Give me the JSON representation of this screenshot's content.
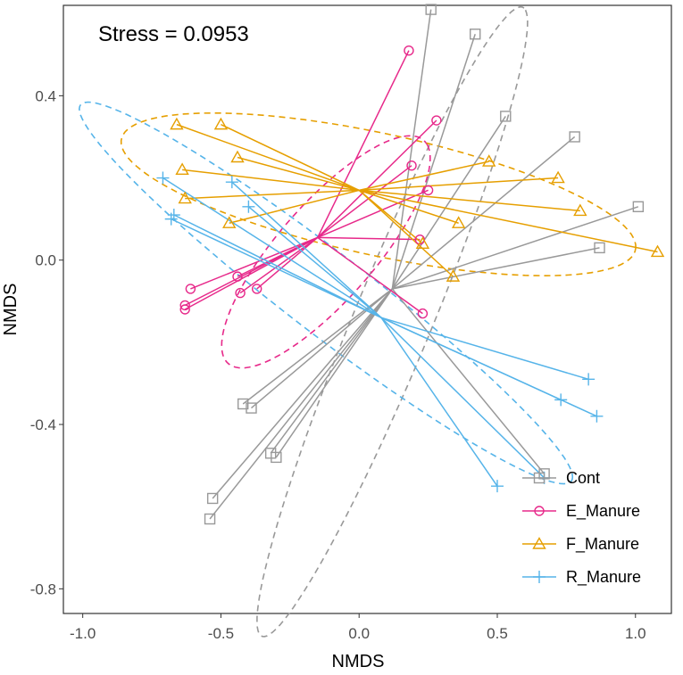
{
  "chart_data": {
    "type": "scatter",
    "title": "",
    "annotation": "Stress = 0.0953",
    "xlabel": "NMDS",
    "ylabel": "NMDS",
    "xlim": [
      -1.07,
      1.13
    ],
    "ylim": [
      -0.86,
      0.62
    ],
    "x_ticks": [
      -1.0,
      -0.5,
      0.0,
      0.5,
      1.0
    ],
    "x_tick_labels": [
      "-1.0",
      "-0.5",
      "0.0",
      "0.5",
      "1.0"
    ],
    "y_ticks": [
      -0.8,
      -0.4,
      0.0,
      0.4
    ],
    "y_tick_labels": [
      "-0.8",
      "-0.4",
      "0.0",
      "0.4"
    ],
    "grid": false,
    "legend_position": "bottom-right",
    "series": [
      {
        "name": "Cont",
        "color": "#999999",
        "marker": "square",
        "centroid": [
          0.12,
          -0.07
        ],
        "points": [
          [
            0.26,
            0.61
          ],
          [
            0.42,
            0.55
          ],
          [
            0.53,
            0.35
          ],
          [
            0.78,
            0.3
          ],
          [
            1.01,
            0.13
          ],
          [
            0.87,
            0.03
          ],
          [
            -0.42,
            -0.35
          ],
          [
            -0.39,
            -0.36
          ],
          [
            -0.32,
            -0.47
          ],
          [
            -0.3,
            -0.48
          ],
          [
            -0.53,
            -0.58
          ],
          [
            -0.54,
            -0.63
          ],
          [
            0.67,
            -0.52
          ]
        ],
        "ellipse": {
          "center": [
            0.12,
            -0.15
          ],
          "semi_axes": [
            0.9,
            0.13
          ],
          "angle_deg": 58
        }
      },
      {
        "name": "E_Manure",
        "color": "#E7298A",
        "marker": "circle",
        "centroid": [
          -0.15,
          0.055
        ],
        "points": [
          [
            0.18,
            0.51
          ],
          [
            0.28,
            0.34
          ],
          [
            0.19,
            0.23
          ],
          [
            0.25,
            0.17
          ],
          [
            0.22,
            0.05
          ],
          [
            0.23,
            -0.13
          ],
          [
            -0.61,
            -0.07
          ],
          [
            -0.63,
            -0.11
          ],
          [
            -0.63,
            -0.12
          ],
          [
            -0.44,
            -0.04
          ],
          [
            -0.43,
            -0.08
          ],
          [
            -0.37,
            -0.07
          ]
        ],
        "ellipse": {
          "center": [
            -0.12,
            0.02
          ],
          "semi_axes": [
            0.45,
            0.14
          ],
          "angle_deg": 35
        }
      },
      {
        "name": "F_Manure",
        "color": "#E69F00",
        "marker": "triangle",
        "centroid": [
          0.0,
          0.17
        ],
        "points": [
          [
            -0.66,
            0.33
          ],
          [
            -0.5,
            0.33
          ],
          [
            -0.44,
            0.25
          ],
          [
            -0.64,
            0.22
          ],
          [
            -0.63,
            0.15
          ],
          [
            -0.47,
            0.09
          ],
          [
            0.47,
            0.24
          ],
          [
            0.72,
            0.2
          ],
          [
            0.8,
            0.12
          ],
          [
            1.08,
            0.02
          ],
          [
            0.36,
            0.09
          ],
          [
            0.34,
            -0.04
          ],
          [
            0.23,
            0.04
          ]
        ],
        "ellipse": {
          "center": [
            0.07,
            0.16
          ],
          "semi_axes": [
            0.94,
            0.15
          ],
          "angle_deg": -8
        }
      },
      {
        "name": "R_Manure",
        "color": "#56B4E9",
        "marker": "plus",
        "centroid": [
          0.08,
          -0.14
        ],
        "points": [
          [
            -0.71,
            0.2
          ],
          [
            -0.46,
            0.19
          ],
          [
            -0.4,
            0.13
          ],
          [
            -0.67,
            0.11
          ],
          [
            -0.68,
            0.1
          ],
          [
            0.5,
            -0.55
          ],
          [
            0.67,
            -0.53
          ],
          [
            0.73,
            -0.34
          ],
          [
            0.83,
            -0.29
          ],
          [
            0.86,
            -0.38
          ]
        ],
        "ellipse": {
          "center": [
            -0.12,
            -0.08
          ],
          "semi_axes": [
            1.0,
            0.11
          ],
          "angle_deg": -27
        }
      }
    ]
  }
}
